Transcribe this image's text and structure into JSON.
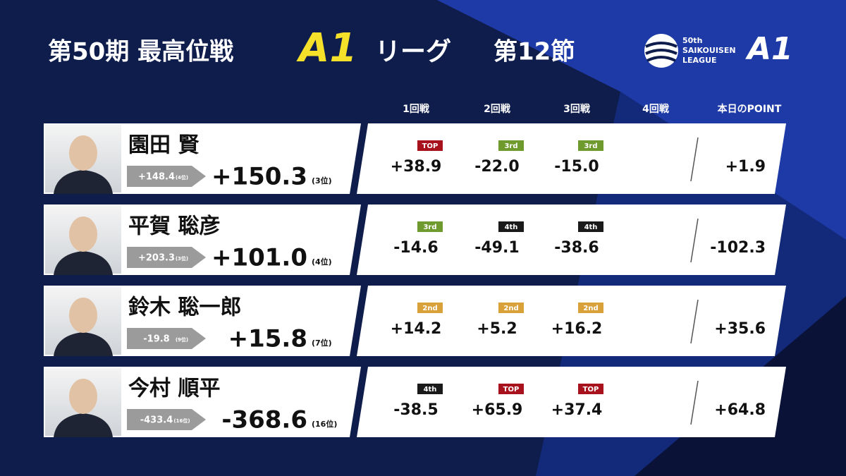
{
  "header": {
    "title_prefix": "第50期 最高位戦",
    "title_league": "A1",
    "title_suffix": "リーグ",
    "section": "第12節"
  },
  "logo": {
    "line1": "50th",
    "line2": "SAIKOUISEN",
    "line3": "LEAGUE",
    "mark": "A1"
  },
  "columns": [
    "1回戦",
    "2回戦",
    "3回戦",
    "4回戦",
    "本日のPOINT"
  ],
  "rows": [
    {
      "name": "園田 賢",
      "previous": "+148.4",
      "previous_rank": "(4位)",
      "total": "+150.3",
      "rank": "(3位)",
      "games": [
        {
          "badge": "TOP",
          "badge_color": "#a8121c",
          "score": "+38.9"
        },
        {
          "badge": "3rd",
          "badge_color": "#6f9a2e",
          "score": "-22.0"
        },
        {
          "badge": "3rd",
          "badge_color": "#6f9a2e",
          "score": "-15.0"
        }
      ],
      "day_point": "+1.9"
    },
    {
      "name": "平賀 聡彦",
      "previous": "+203.3",
      "previous_rank": "(3位)",
      "total": "+101.0",
      "rank": "(4位)",
      "games": [
        {
          "badge": "3rd",
          "badge_color": "#6f9a2e",
          "score": "-14.6"
        },
        {
          "badge": "4th",
          "badge_color": "#1a1a1a",
          "score": "-49.1"
        },
        {
          "badge": "4th",
          "badge_color": "#1a1a1a",
          "score": "-38.6"
        }
      ],
      "day_point": "-102.3"
    },
    {
      "name": "鈴木 聡一郎",
      "previous": "-19.8",
      "previous_rank": "(9位)",
      "total": "+15.8",
      "rank": "(7位)",
      "games": [
        {
          "badge": "2nd",
          "badge_color": "#d9a13a",
          "score": "+14.2"
        },
        {
          "badge": "2nd",
          "badge_color": "#d9a13a",
          "score": "+5.2"
        },
        {
          "badge": "2nd",
          "badge_color": "#d9a13a",
          "score": "+16.2"
        }
      ],
      "day_point": "+35.6"
    },
    {
      "name": "今村 順平",
      "previous": "-433.4",
      "previous_rank": "(16位)",
      "total": "-368.6",
      "rank": "(16位)",
      "games": [
        {
          "badge": "4th",
          "badge_color": "#1a1a1a",
          "score": "-38.5"
        },
        {
          "badge": "TOP",
          "badge_color": "#a8121c",
          "score": "+65.9"
        },
        {
          "badge": "TOP",
          "badge_color": "#a8121c",
          "score": "+37.4"
        }
      ],
      "day_point": "+64.8"
    }
  ]
}
